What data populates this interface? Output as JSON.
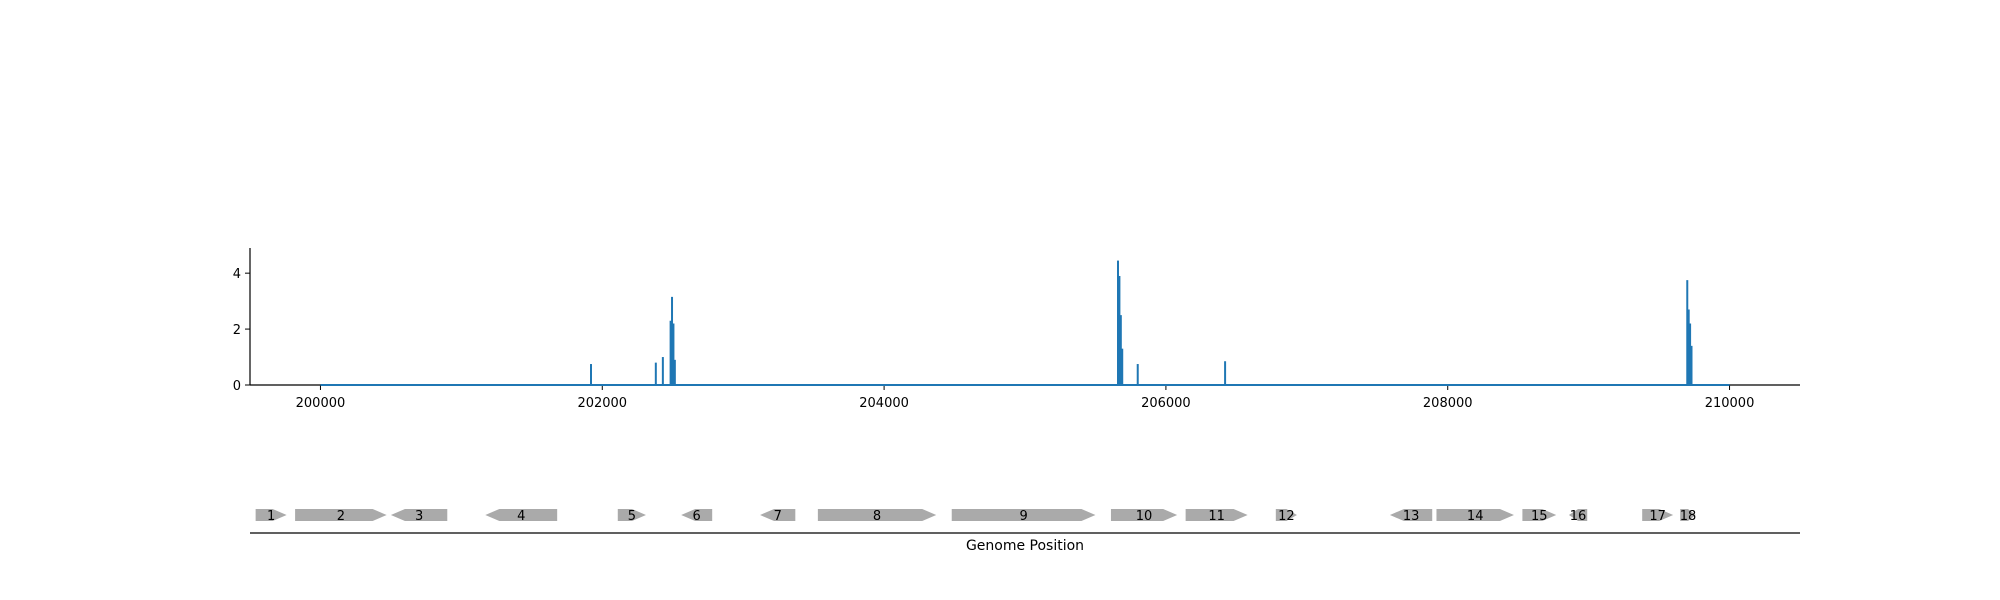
{
  "chart_data": [
    {
      "type": "line",
      "title": "",
      "xlabel": "",
      "ylabel": "",
      "xlim": [
        199500,
        210500
      ],
      "ylim": [
        0,
        4.9
      ],
      "xticks": [
        200000,
        202000,
        204000,
        206000,
        208000,
        210000
      ],
      "yticks": [
        0,
        2,
        4
      ],
      "color": "#1f77b4",
      "grid": false,
      "baseline": {
        "x_start": 200000,
        "x_end": 210000,
        "value": 0
      },
      "peaks": [
        {
          "x": 201920,
          "y": 0.75
        },
        {
          "x": 202380,
          "y": 0.8
        },
        {
          "x": 202430,
          "y": 1.0
        },
        {
          "x": 202485,
          "y": 2.3
        },
        {
          "x": 202495,
          "y": 3.15
        },
        {
          "x": 202505,
          "y": 2.2
        },
        {
          "x": 202515,
          "y": 0.9
        },
        {
          "x": 205660,
          "y": 4.45
        },
        {
          "x": 205670,
          "y": 3.9
        },
        {
          "x": 205680,
          "y": 2.5
        },
        {
          "x": 205690,
          "y": 1.3
        },
        {
          "x": 205800,
          "y": 0.75
        },
        {
          "x": 206420,
          "y": 0.85
        },
        {
          "x": 209700,
          "y": 3.75
        },
        {
          "x": 209710,
          "y": 2.7
        },
        {
          "x": 209720,
          "y": 2.2
        },
        {
          "x": 209730,
          "y": 1.4
        }
      ]
    },
    {
      "type": "gene-map",
      "xlabel": "Genome Position",
      "xlim": [
        199500,
        210500
      ],
      "fill_color": "#aaaaaa",
      "genes": [
        {
          "label": "1",
          "start": 199540,
          "end": 199760,
          "strand": "+"
        },
        {
          "label": "2",
          "start": 199820,
          "end": 200470,
          "strand": "+"
        },
        {
          "label": "3",
          "start": 200500,
          "end": 200900,
          "strand": "-"
        },
        {
          "label": "4",
          "start": 201170,
          "end": 201680,
          "strand": "-"
        },
        {
          "label": "5",
          "start": 202110,
          "end": 202310,
          "strand": "+"
        },
        {
          "label": "6",
          "start": 202560,
          "end": 202780,
          "strand": "-"
        },
        {
          "label": "7",
          "start": 203120,
          "end": 203370,
          "strand": "-"
        },
        {
          "label": "8",
          "start": 203530,
          "end": 204370,
          "strand": "+"
        },
        {
          "label": "9",
          "start": 204480,
          "end": 205500,
          "strand": "+"
        },
        {
          "label": "10",
          "start": 205610,
          "end": 206080,
          "strand": "+"
        },
        {
          "label": "11",
          "start": 206140,
          "end": 206580,
          "strand": "+"
        },
        {
          "label": "12",
          "start": 206780,
          "end": 206930,
          "strand": "+"
        },
        {
          "label": "13",
          "start": 207590,
          "end": 207890,
          "strand": "-"
        },
        {
          "label": "14",
          "start": 207920,
          "end": 208470,
          "strand": "+"
        },
        {
          "label": "15",
          "start": 208530,
          "end": 208770,
          "strand": "+"
        },
        {
          "label": "16",
          "start": 208860,
          "end": 208990,
          "strand": "-"
        },
        {
          "label": "17",
          "start": 209380,
          "end": 209600,
          "strand": "+"
        },
        {
          "label": "18",
          "start": 209650,
          "end": 209760,
          "strand": "+"
        }
      ]
    }
  ]
}
